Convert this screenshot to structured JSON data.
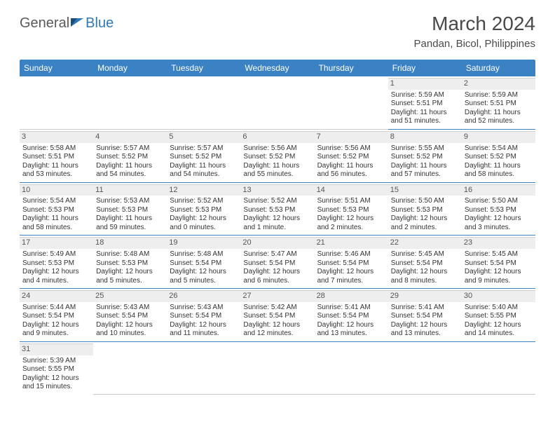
{
  "brand": {
    "word1": "General",
    "word2": "Blue"
  },
  "title": "March 2024",
  "location": "Pandan, Bicol, Philippines",
  "colors": {
    "header_bg": "#3b82c4",
    "header_text": "#ffffff",
    "row_divider": "#3b82c4",
    "daynum_bg": "#eeeeee",
    "text": "#333333",
    "brand_gray": "#5a5a5a",
    "brand_blue": "#2f79b9"
  },
  "day_headers": [
    "Sunday",
    "Monday",
    "Tuesday",
    "Wednesday",
    "Thursday",
    "Friday",
    "Saturday"
  ],
  "weeks": [
    [
      null,
      null,
      null,
      null,
      null,
      {
        "n": "1",
        "sr": "Sunrise: 5:59 AM",
        "ss": "Sunset: 5:51 PM",
        "d1": "Daylight: 11 hours",
        "d2": "and 51 minutes."
      },
      {
        "n": "2",
        "sr": "Sunrise: 5:59 AM",
        "ss": "Sunset: 5:51 PM",
        "d1": "Daylight: 11 hours",
        "d2": "and 52 minutes."
      }
    ],
    [
      {
        "n": "3",
        "sr": "Sunrise: 5:58 AM",
        "ss": "Sunset: 5:51 PM",
        "d1": "Daylight: 11 hours",
        "d2": "and 53 minutes."
      },
      {
        "n": "4",
        "sr": "Sunrise: 5:57 AM",
        "ss": "Sunset: 5:52 PM",
        "d1": "Daylight: 11 hours",
        "d2": "and 54 minutes."
      },
      {
        "n": "5",
        "sr": "Sunrise: 5:57 AM",
        "ss": "Sunset: 5:52 PM",
        "d1": "Daylight: 11 hours",
        "d2": "and 54 minutes."
      },
      {
        "n": "6",
        "sr": "Sunrise: 5:56 AM",
        "ss": "Sunset: 5:52 PM",
        "d1": "Daylight: 11 hours",
        "d2": "and 55 minutes."
      },
      {
        "n": "7",
        "sr": "Sunrise: 5:56 AM",
        "ss": "Sunset: 5:52 PM",
        "d1": "Daylight: 11 hours",
        "d2": "and 56 minutes."
      },
      {
        "n": "8",
        "sr": "Sunrise: 5:55 AM",
        "ss": "Sunset: 5:52 PM",
        "d1": "Daylight: 11 hours",
        "d2": "and 57 minutes."
      },
      {
        "n": "9",
        "sr": "Sunrise: 5:54 AM",
        "ss": "Sunset: 5:52 PM",
        "d1": "Daylight: 11 hours",
        "d2": "and 58 minutes."
      }
    ],
    [
      {
        "n": "10",
        "sr": "Sunrise: 5:54 AM",
        "ss": "Sunset: 5:53 PM",
        "d1": "Daylight: 11 hours",
        "d2": "and 58 minutes."
      },
      {
        "n": "11",
        "sr": "Sunrise: 5:53 AM",
        "ss": "Sunset: 5:53 PM",
        "d1": "Daylight: 11 hours",
        "d2": "and 59 minutes."
      },
      {
        "n": "12",
        "sr": "Sunrise: 5:52 AM",
        "ss": "Sunset: 5:53 PM",
        "d1": "Daylight: 12 hours",
        "d2": "and 0 minutes."
      },
      {
        "n": "13",
        "sr": "Sunrise: 5:52 AM",
        "ss": "Sunset: 5:53 PM",
        "d1": "Daylight: 12 hours",
        "d2": "and 1 minute."
      },
      {
        "n": "14",
        "sr": "Sunrise: 5:51 AM",
        "ss": "Sunset: 5:53 PM",
        "d1": "Daylight: 12 hours",
        "d2": "and 2 minutes."
      },
      {
        "n": "15",
        "sr": "Sunrise: 5:50 AM",
        "ss": "Sunset: 5:53 PM",
        "d1": "Daylight: 12 hours",
        "d2": "and 2 minutes."
      },
      {
        "n": "16",
        "sr": "Sunrise: 5:50 AM",
        "ss": "Sunset: 5:53 PM",
        "d1": "Daylight: 12 hours",
        "d2": "and 3 minutes."
      }
    ],
    [
      {
        "n": "17",
        "sr": "Sunrise: 5:49 AM",
        "ss": "Sunset: 5:53 PM",
        "d1": "Daylight: 12 hours",
        "d2": "and 4 minutes."
      },
      {
        "n": "18",
        "sr": "Sunrise: 5:48 AM",
        "ss": "Sunset: 5:53 PM",
        "d1": "Daylight: 12 hours",
        "d2": "and 5 minutes."
      },
      {
        "n": "19",
        "sr": "Sunrise: 5:48 AM",
        "ss": "Sunset: 5:54 PM",
        "d1": "Daylight: 12 hours",
        "d2": "and 5 minutes."
      },
      {
        "n": "20",
        "sr": "Sunrise: 5:47 AM",
        "ss": "Sunset: 5:54 PM",
        "d1": "Daylight: 12 hours",
        "d2": "and 6 minutes."
      },
      {
        "n": "21",
        "sr": "Sunrise: 5:46 AM",
        "ss": "Sunset: 5:54 PM",
        "d1": "Daylight: 12 hours",
        "d2": "and 7 minutes."
      },
      {
        "n": "22",
        "sr": "Sunrise: 5:45 AM",
        "ss": "Sunset: 5:54 PM",
        "d1": "Daylight: 12 hours",
        "d2": "and 8 minutes."
      },
      {
        "n": "23",
        "sr": "Sunrise: 5:45 AM",
        "ss": "Sunset: 5:54 PM",
        "d1": "Daylight: 12 hours",
        "d2": "and 9 minutes."
      }
    ],
    [
      {
        "n": "24",
        "sr": "Sunrise: 5:44 AM",
        "ss": "Sunset: 5:54 PM",
        "d1": "Daylight: 12 hours",
        "d2": "and 9 minutes."
      },
      {
        "n": "25",
        "sr": "Sunrise: 5:43 AM",
        "ss": "Sunset: 5:54 PM",
        "d1": "Daylight: 12 hours",
        "d2": "and 10 minutes."
      },
      {
        "n": "26",
        "sr": "Sunrise: 5:43 AM",
        "ss": "Sunset: 5:54 PM",
        "d1": "Daylight: 12 hours",
        "d2": "and 11 minutes."
      },
      {
        "n": "27",
        "sr": "Sunrise: 5:42 AM",
        "ss": "Sunset: 5:54 PM",
        "d1": "Daylight: 12 hours",
        "d2": "and 12 minutes."
      },
      {
        "n": "28",
        "sr": "Sunrise: 5:41 AM",
        "ss": "Sunset: 5:54 PM",
        "d1": "Daylight: 12 hours",
        "d2": "and 13 minutes."
      },
      {
        "n": "29",
        "sr": "Sunrise: 5:41 AM",
        "ss": "Sunset: 5:54 PM",
        "d1": "Daylight: 12 hours",
        "d2": "and 13 minutes."
      },
      {
        "n": "30",
        "sr": "Sunrise: 5:40 AM",
        "ss": "Sunset: 5:55 PM",
        "d1": "Daylight: 12 hours",
        "d2": "and 14 minutes."
      }
    ],
    [
      {
        "n": "31",
        "sr": "Sunrise: 5:39 AM",
        "ss": "Sunset: 5:55 PM",
        "d1": "Daylight: 12 hours",
        "d2": "and 15 minutes."
      },
      null,
      null,
      null,
      null,
      null,
      null
    ]
  ]
}
